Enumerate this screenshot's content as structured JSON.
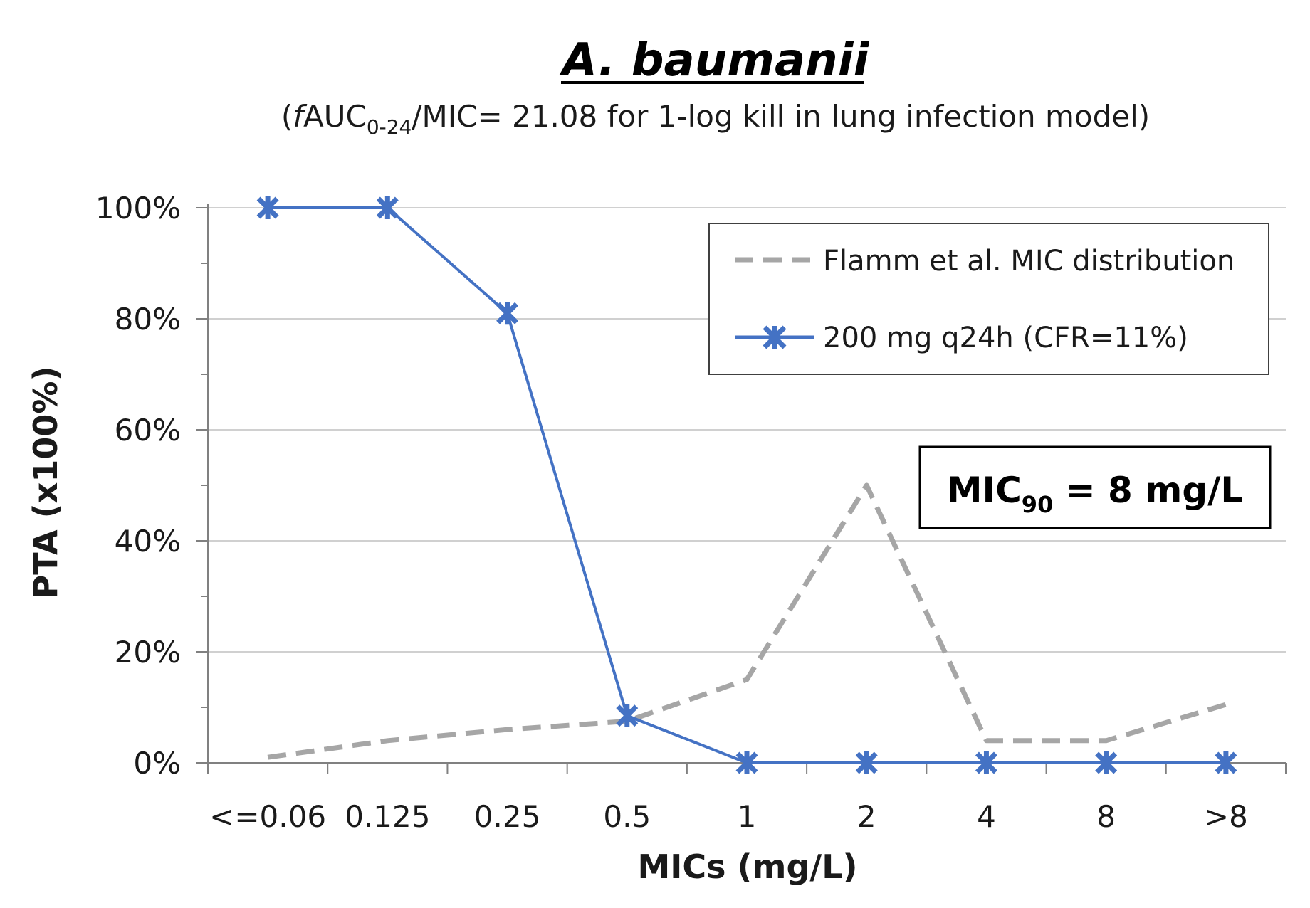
{
  "chart_data": {
    "type": "line",
    "title": "A. baumanii",
    "subtitle": {
      "open": "(",
      "italic_f": "f",
      "auc": "AUC",
      "auc_sub": "0-24",
      "rest": "/MIC= 21.08 for 1-log kill in lung infection model)"
    },
    "xlabel": "MICs (mg/L)",
    "ylabel": "PTA (x100%)",
    "categories": [
      "<=0.06",
      "0.125",
      "0.25",
      "0.5",
      "1",
      "2",
      "4",
      "8",
      ">8"
    ],
    "yticks": [
      "0%",
      "20%",
      "40%",
      "60%",
      "80%",
      "100%"
    ],
    "ylim": [
      0,
      100
    ],
    "grid": true,
    "legend_position": "top-right",
    "series": [
      {
        "name": "Flamm et al. MIC distribution",
        "style": "dashed",
        "color": "#a6a6a6",
        "marker": "none",
        "values": [
          1,
          4,
          6,
          7.5,
          15,
          50,
          4,
          4,
          10.5
        ]
      },
      {
        "name": "200 mg q24h (CFR=11%)",
        "style": "solid",
        "color": "#4472c4",
        "marker": "x-star",
        "values": [
          100,
          100,
          81,
          8.5,
          0,
          0,
          0,
          0,
          0
        ]
      }
    ],
    "annotation": {
      "label": "MIC",
      "sub": "90",
      "value": " = 8 mg/L"
    }
  }
}
